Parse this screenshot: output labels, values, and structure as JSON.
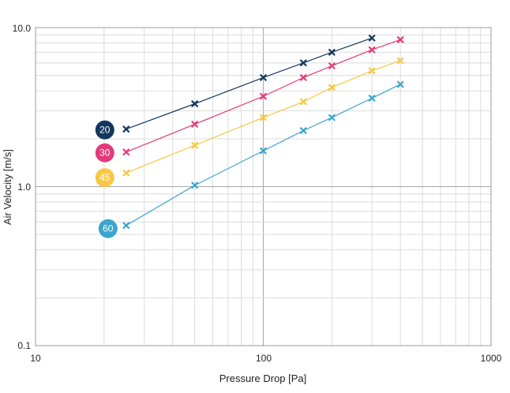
{
  "chart_data": {
    "type": "line",
    "xlabel": "Pressure Drop [Pa]",
    "ylabel": "Air Velocity [m/s]",
    "x_scale": "log",
    "y_scale": "log",
    "xlim": [
      10,
      1000
    ],
    "ylim": [
      0.1,
      10
    ],
    "x_ticks": [
      "10",
      "100",
      "1000"
    ],
    "y_ticks": [
      "0.1",
      "1.0",
      "10.0"
    ],
    "grid": true,
    "marker": "x",
    "series": [
      {
        "name": "20",
        "color": "#14375e",
        "x": [
          25,
          50,
          100,
          150,
          200,
          300
        ],
        "y": [
          2.3,
          3.32,
          4.85,
          6.0,
          7.0,
          8.6
        ]
      },
      {
        "name": "30",
        "color": "#e23b7a",
        "x": [
          25,
          50,
          100,
          150,
          200,
          300,
          400
        ],
        "y": [
          1.65,
          2.47,
          3.7,
          4.85,
          5.75,
          7.25,
          8.4
        ]
      },
      {
        "name": "45",
        "color": "#f7c843",
        "x": [
          25,
          50,
          100,
          150,
          200,
          300,
          400
        ],
        "y": [
          1.22,
          1.82,
          2.72,
          3.42,
          4.2,
          5.35,
          6.2
        ]
      },
      {
        "name": "60",
        "color": "#3ba5ce",
        "x": [
          25,
          50,
          100,
          150,
          200,
          300,
          400
        ],
        "y": [
          0.57,
          1.02,
          1.68,
          2.25,
          2.72,
          3.6,
          4.4
        ]
      }
    ]
  }
}
